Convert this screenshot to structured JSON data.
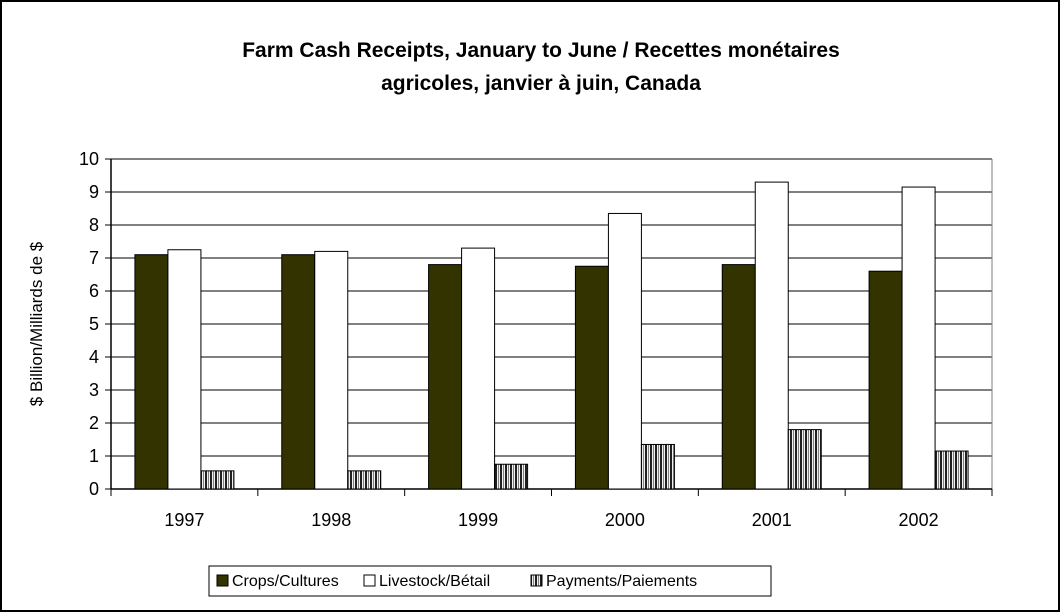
{
  "chart_data": {
    "type": "bar",
    "title_line1": "Farm Cash Receipts, January to June / Recettes monétaires",
    "title_line2": "agricoles, janvier à juin, Canada",
    "ylabel": "$ Billion/Milliards de $",
    "xlabel": "",
    "categories": [
      "1997",
      "1998",
      "1999",
      "2000",
      "2001",
      "2002"
    ],
    "ylim": [
      0,
      10
    ],
    "yticks": [
      "0",
      "1",
      "2",
      "3",
      "4",
      "5",
      "6",
      "7",
      "8",
      "9",
      "10"
    ],
    "grid": true,
    "legend_position": "bottom",
    "series": [
      {
        "name": "Crops/Cultures",
        "values": [
          7.1,
          7.1,
          6.8,
          6.75,
          6.8,
          6.6
        ],
        "color": "#333300",
        "pattern": "solid"
      },
      {
        "name": "Livestock/Bétail",
        "values": [
          7.25,
          7.2,
          7.3,
          8.35,
          9.3,
          9.15
        ],
        "color": "#ffffff",
        "pattern": "solid"
      },
      {
        "name": "Payments/Paiements",
        "values": [
          0.55,
          0.55,
          0.75,
          1.35,
          1.8,
          1.15
        ],
        "color": "#808080",
        "pattern": "vertical-stripes"
      }
    ]
  }
}
